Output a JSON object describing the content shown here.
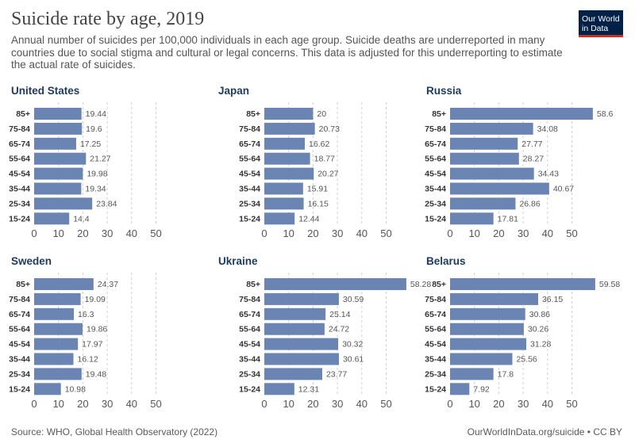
{
  "title": "Suicide rate by age, 2019",
  "subtitle": "Annual number of suicides per 100,000 individuals in each age group. Suicide deaths are underreported in many countries due to social stigma and cultural or legal concerns. This data is adjusted for this underreporting to estimate the actual rate of suicides.",
  "logo": {
    "line1": "Our World",
    "line2": "in Data"
  },
  "source": "Source: WHO, Global Health Observatory (2022)",
  "credit": "OurWorldInData.org/suicide • CC BY",
  "colors": {
    "bar": "#6a84b3",
    "grid": "#d0d0d0",
    "label": "#555555",
    "panel_title": "#1f3b60",
    "category": "#333333"
  },
  "chart_data": {
    "type": "bar",
    "orientation": "horizontal",
    "categories": [
      "85+",
      "75-84",
      "65-74",
      "55-64",
      "45-54",
      "35-44",
      "25-34",
      "15-24"
    ],
    "xticks": [
      0,
      10,
      20,
      30,
      40,
      50
    ],
    "xlim": [
      0,
      60
    ],
    "panels": [
      {
        "name": "United States",
        "values": [
          19.44,
          19.6,
          17.25,
          21.27,
          19.98,
          19.34,
          23.84,
          14.4
        ],
        "labels": [
          "19.44",
          "19.6",
          "17.25",
          "21.27",
          "19.98",
          "19.34",
          "23.84",
          "14.4"
        ]
      },
      {
        "name": "Japan",
        "values": [
          20,
          20.73,
          16.62,
          18.77,
          20.27,
          15.91,
          16.15,
          12.44
        ],
        "labels": [
          "20",
          "20.73",
          "16.62",
          "18.77",
          "20.27",
          "15.91",
          "16.15",
          "12.44"
        ]
      },
      {
        "name": "Russia",
        "values": [
          58.6,
          34.08,
          27.77,
          28.27,
          34.43,
          40.67,
          26.86,
          17.81
        ],
        "labels": [
          "58.6",
          "34.08",
          "27.77",
          "28.27",
          "34.43",
          "40.67",
          "26.86",
          "17.81"
        ]
      },
      {
        "name": "Sweden",
        "values": [
          24.37,
          19.09,
          16.3,
          19.86,
          17.97,
          16.12,
          19.48,
          10.98
        ],
        "labels": [
          "24.37",
          "19.09",
          "16.3",
          "19.86",
          "17.97",
          "16.12",
          "19.48",
          "10.98"
        ]
      },
      {
        "name": "Ukraine",
        "values": [
          58.28,
          30.59,
          25.14,
          24.72,
          30.32,
          30.61,
          23.77,
          12.31
        ],
        "labels": [
          "58.28",
          "30.59",
          "25.14",
          "24.72",
          "30.32",
          "30.61",
          "23.77",
          "12.31"
        ]
      },
      {
        "name": "Belarus",
        "values": [
          59.58,
          36.15,
          30.86,
          30.26,
          31.28,
          25.56,
          17.8,
          7.92
        ],
        "labels": [
          "59.58",
          "36.15",
          "30.86",
          "30.26",
          "31.28",
          "25.56",
          "17.8",
          "7.92"
        ]
      }
    ]
  }
}
